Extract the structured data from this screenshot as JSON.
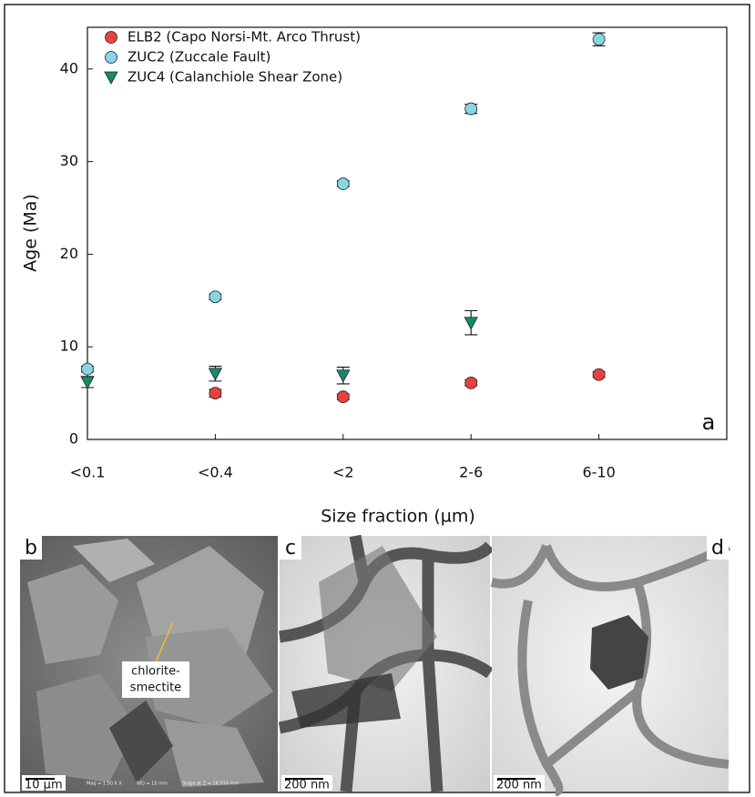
{
  "chart_data": {
    "type": "scatter",
    "panel_label": "a",
    "x_label": "Size fraction (µm)",
    "y_label": "Age (Ma)",
    "categories": [
      "<0.1",
      "<0.4",
      "<2",
      "2-6",
      "6-10"
    ],
    "ylim": [
      0,
      44.5
    ],
    "yticks": [
      0,
      10,
      20,
      30,
      40
    ],
    "grid": false,
    "legend": "upper left",
    "series": [
      {
        "name": "ELB2 (Capo Norsi-Mt. Arco Thrust)",
        "color": "#e8423d",
        "marker": "circle",
        "values": [
          null,
          5.0,
          4.6,
          6.1,
          7.0
        ],
        "errors": [
          null,
          0.4,
          0.3,
          0.3,
          0.3
        ]
      },
      {
        "name": "ZUC2 (Zuccale Fault)",
        "color": "#86d6e4",
        "marker": "circle",
        "values": [
          7.6,
          15.4,
          27.6,
          35.7,
          43.2
        ],
        "errors": [
          0.3,
          0.3,
          0.3,
          0.5,
          0.7
        ]
      },
      {
        "name": "ZUC4 (Calanchiole Shear Zone)",
        "color": "#168a6c",
        "marker": "triangle",
        "values": [
          6.2,
          7.1,
          6.9,
          12.6,
          null
        ],
        "errors": [
          0.6,
          0.8,
          0.9,
          1.3,
          null
        ]
      }
    ]
  },
  "micrographs": [
    {
      "label": "b",
      "scale": "10 µm",
      "annotation": [
        "chlorite-",
        "smectite"
      ],
      "info": [
        "Mag = 1.50 K X",
        "WD = 15 mm",
        "Stage at Z = 16.316 mm"
      ]
    },
    {
      "label": "c",
      "scale": "200 nm"
    },
    {
      "label": "d",
      "scale": "200 nm"
    }
  ]
}
